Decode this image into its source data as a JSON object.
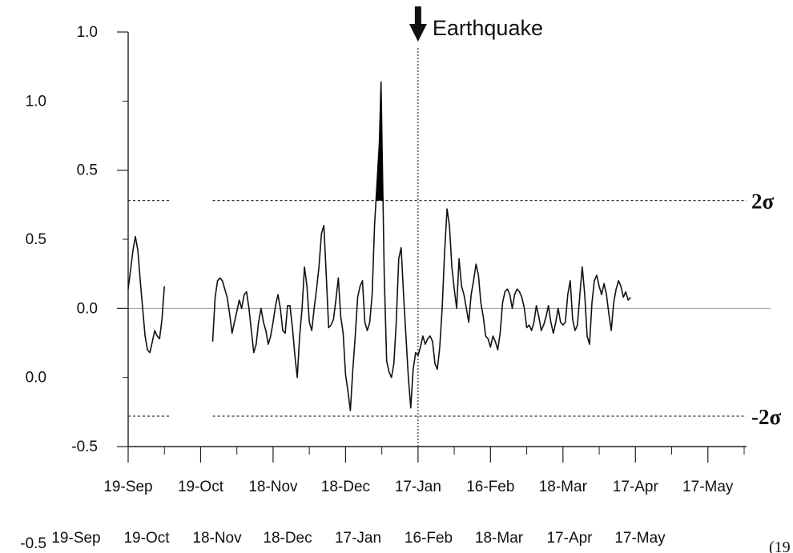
{
  "chart_data": {
    "type": "line",
    "annotation": "Earthquake",
    "upper_band_label": "2σ",
    "lower_band_label": "-2σ",
    "upper_band_value": 0.39,
    "lower_band_value": -0.39,
    "earthquake_date": "17-Jan",
    "ylim": [
      -0.5,
      1.0
    ],
    "y_ticks": [
      {
        "value": 1.0,
        "label": "1.0"
      },
      {
        "value": 0.5,
        "label": "0.5"
      },
      {
        "value": 0.0,
        "label": "0.0"
      },
      {
        "value": -0.5,
        "label": "-0.5"
      }
    ],
    "y_ticks_duplicate": [
      "1.0",
      "0.5",
      "0.0",
      "-0.5"
    ],
    "x_ticks": [
      {
        "day": 0,
        "label": "19-Sep"
      },
      {
        "day": 30,
        "label": "19-Oct"
      },
      {
        "day": 60,
        "label": "18-Nov"
      },
      {
        "day": 90,
        "label": "18-Dec"
      },
      {
        "day": 120,
        "label": "17-Jan"
      },
      {
        "day": 150,
        "label": "16-Feb"
      },
      {
        "day": 180,
        "label": "18-Mar"
      },
      {
        "day": 210,
        "label": "17-Apr"
      },
      {
        "day": 240,
        "label": "17-May"
      }
    ],
    "x_ticks_duplicate": [
      "19-Sep",
      "19-Oct",
      "18-Nov",
      "18-Dec",
      "17-Jan",
      "16-Feb",
      "18-Mar",
      "17-Apr",
      "17-May"
    ],
    "xlim_days": [
      0,
      256
    ],
    "corner_text": "(19",
    "series": [
      {
        "segments": [
          [
            [
              0,
              0.07
            ],
            [
              2,
              0.21
            ],
            [
              3,
              0.26
            ],
            [
              4,
              0.21
            ],
            [
              5,
              0.1
            ],
            [
              6,
              0.0
            ],
            [
              7,
              -0.1
            ],
            [
              8,
              -0.15
            ],
            [
              9,
              -0.16
            ],
            [
              10,
              -0.12
            ],
            [
              11,
              -0.08
            ],
            [
              12,
              -0.1
            ],
            [
              13,
              -0.11
            ],
            [
              14,
              -0.04
            ],
            [
              15,
              0.08
            ]
          ],
          [
            [
              35,
              -0.12
            ],
            [
              36,
              0.04
            ],
            [
              37,
              0.1
            ],
            [
              38,
              0.11
            ],
            [
              39,
              0.1
            ],
            [
              40,
              0.07
            ],
            [
              41,
              0.04
            ],
            [
              42,
              -0.02
            ],
            [
              43,
              -0.09
            ],
            [
              44,
              -0.05
            ],
            [
              45,
              -0.01
            ],
            [
              46,
              0.03
            ],
            [
              47,
              0.0
            ],
            [
              48,
              0.05
            ],
            [
              49,
              0.06
            ],
            [
              50,
              0.0
            ],
            [
              51,
              -0.08
            ],
            [
              52,
              -0.16
            ],
            [
              53,
              -0.13
            ],
            [
              54,
              -0.05
            ],
            [
              55,
              0.0
            ],
            [
              56,
              -0.05
            ],
            [
              57,
              -0.08
            ],
            [
              58,
              -0.13
            ],
            [
              59,
              -0.1
            ],
            [
              60,
              -0.05
            ],
            [
              61,
              0.01
            ],
            [
              62,
              0.05
            ],
            [
              63,
              0.0
            ],
            [
              64,
              -0.08
            ],
            [
              65,
              -0.09
            ],
            [
              66,
              0.01
            ],
            [
              67,
              0.01
            ],
            [
              68,
              -0.07
            ],
            [
              69,
              -0.17
            ],
            [
              70,
              -0.25
            ],
            [
              71,
              -0.1
            ],
            [
              72,
              0.0
            ],
            [
              73,
              0.15
            ],
            [
              74,
              0.08
            ],
            [
              75,
              -0.05
            ],
            [
              76,
              -0.08
            ],
            [
              77,
              0.0
            ],
            [
              78,
              0.07
            ],
            [
              79,
              0.15
            ],
            [
              80,
              0.27
            ],
            [
              81,
              0.3
            ],
            [
              82,
              0.12
            ],
            [
              83,
              -0.07
            ],
            [
              84,
              -0.06
            ],
            [
              85,
              -0.04
            ],
            [
              86,
              0.03
            ],
            [
              87,
              0.11
            ],
            [
              88,
              -0.03
            ],
            [
              89,
              -0.09
            ],
            [
              90,
              -0.24
            ],
            [
              91,
              -0.3
            ],
            [
              92,
              -0.37
            ],
            [
              93,
              -0.22
            ],
            [
              94,
              -0.1
            ],
            [
              95,
              0.04
            ],
            [
              96,
              0.08
            ],
            [
              97,
              0.1
            ],
            [
              98,
              -0.05
            ],
            [
              99,
              -0.08
            ],
            [
              100,
              -0.05
            ],
            [
              101,
              0.05
            ],
            [
              102,
              0.3
            ],
            [
              103,
              0.45
            ],
            [
              104,
              0.6
            ],
            [
              104.7,
              0.82
            ],
            [
              105.5,
              0.4
            ],
            [
              106,
              0.12
            ],
            [
              107,
              -0.19
            ],
            [
              108,
              -0.23
            ],
            [
              109,
              -0.25
            ],
            [
              110,
              -0.2
            ],
            [
              111,
              -0.05
            ],
            [
              112,
              0.18
            ],
            [
              113,
              0.22
            ],
            [
              114,
              0.05
            ],
            [
              115,
              -0.1
            ],
            [
              116,
              -0.25
            ],
            [
              117,
              -0.36
            ],
            [
              118,
              -0.22
            ],
            [
              119,
              -0.16
            ],
            [
              120,
              -0.17
            ],
            [
              121,
              -0.14
            ],
            [
              122,
              -0.1
            ],
            [
              123,
              -0.13
            ],
            [
              124,
              -0.11
            ],
            [
              125,
              -0.1
            ],
            [
              126,
              -0.12
            ],
            [
              127,
              -0.2
            ],
            [
              128,
              -0.22
            ],
            [
              129,
              -0.14
            ],
            [
              130,
              0.0
            ],
            [
              131,
              0.2
            ],
            [
              132,
              0.36
            ],
            [
              133,
              0.3
            ],
            [
              134,
              0.15
            ],
            [
              135,
              0.07
            ],
            [
              136,
              0.0
            ],
            [
              137,
              0.18
            ],
            [
              138,
              0.08
            ],
            [
              139,
              0.05
            ],
            [
              140,
              0.0
            ],
            [
              141,
              -0.05
            ],
            [
              142,
              0.05
            ],
            [
              143,
              0.1
            ],
            [
              144,
              0.16
            ],
            [
              145,
              0.12
            ],
            [
              146,
              0.02
            ],
            [
              147,
              -0.03
            ],
            [
              148,
              -0.1
            ],
            [
              149,
              -0.11
            ],
            [
              150,
              -0.14
            ],
            [
              151,
              -0.1
            ],
            [
              152,
              -0.12
            ],
            [
              153,
              -0.15
            ],
            [
              154,
              -0.09
            ],
            [
              155,
              0.02
            ],
            [
              156,
              0.06
            ],
            [
              157,
              0.07
            ],
            [
              158,
              0.05
            ],
            [
              159,
              0.0
            ],
            [
              160,
              0.05
            ],
            [
              161,
              0.07
            ],
            [
              162,
              0.06
            ],
            [
              163,
              0.04
            ],
            [
              164,
              0.0
            ],
            [
              165,
              -0.07
            ],
            [
              166,
              -0.06
            ],
            [
              167,
              -0.08
            ],
            [
              168,
              -0.05
            ],
            [
              169,
              0.01
            ],
            [
              170,
              -0.03
            ],
            [
              171,
              -0.08
            ],
            [
              172,
              -0.06
            ],
            [
              173,
              -0.03
            ],
            [
              174,
              0.01
            ],
            [
              175,
              -0.05
            ],
            [
              176,
              -0.09
            ],
            [
              177,
              -0.05
            ],
            [
              178,
              0.0
            ],
            [
              179,
              -0.05
            ],
            [
              180,
              -0.06
            ],
            [
              181,
              -0.05
            ],
            [
              182,
              0.05
            ],
            [
              183,
              0.1
            ],
            [
              184,
              -0.04
            ],
            [
              185,
              -0.08
            ],
            [
              186,
              -0.06
            ],
            [
              187,
              0.05
            ],
            [
              188,
              0.15
            ],
            [
              189,
              0.05
            ],
            [
              190,
              -0.1
            ],
            [
              191,
              -0.13
            ],
            [
              192,
              0.02
            ],
            [
              193,
              0.1
            ],
            [
              194,
              0.12
            ],
            [
              195,
              0.08
            ],
            [
              196,
              0.05
            ],
            [
              197,
              0.09
            ],
            [
              198,
              0.05
            ],
            [
              199,
              -0.02
            ],
            [
              200,
              -0.08
            ],
            [
              201,
              0.02
            ],
            [
              202,
              0.07
            ],
            [
              203,
              0.1
            ],
            [
              204,
              0.08
            ],
            [
              205,
              0.04
            ],
            [
              206,
              0.06
            ],
            [
              207,
              0.03
            ],
            [
              208,
              0.04
            ]
          ]
        ]
      }
    ]
  }
}
